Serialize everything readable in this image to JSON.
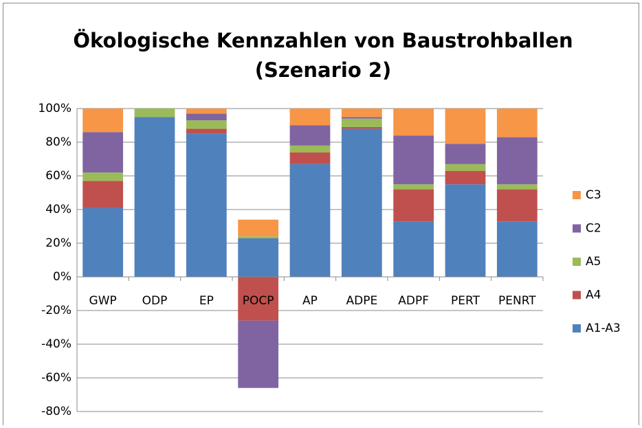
{
  "chart_data": {
    "type": "bar",
    "stacked": true,
    "title": [
      "Ökologische Kennzahlen von Baustrohballen",
      "(Szenario 2)"
    ],
    "categories": [
      "GWP",
      "ODP",
      "EP",
      "POCP",
      "AP",
      "ADPE",
      "ADPF",
      "PERT",
      "PENRT"
    ],
    "series": [
      {
        "name": "A1-A3",
        "color": "#4f81bd",
        "values": [
          41,
          95,
          85,
          23,
          67,
          88,
          33,
          55,
          33
        ]
      },
      {
        "name": "A4",
        "color": "#c0504d",
        "values": [
          16,
          0,
          3,
          -26,
          7,
          1,
          19,
          8,
          19
        ]
      },
      {
        "name": "A5",
        "color": "#9bbb59",
        "values": [
          5,
          5,
          5,
          1,
          4,
          5,
          3,
          4,
          3
        ]
      },
      {
        "name": "C2",
        "color": "#8064a2",
        "values": [
          24,
          0,
          4,
          -40,
          12,
          1,
          29,
          12,
          28
        ]
      },
      {
        "name": "C3",
        "color": "#f79646",
        "values": [
          14,
          0,
          3,
          10,
          10,
          5,
          16,
          21,
          17
        ]
      }
    ],
    "ylim": [
      -80,
      100
    ],
    "yticks": [
      {
        "value": -80,
        "label": "-80%"
      },
      {
        "value": -60,
        "label": "-60%"
      },
      {
        "value": -40,
        "label": "-40%"
      },
      {
        "value": -20,
        "label": "-20%"
      },
      {
        "value": 0,
        "label": "0%"
      },
      {
        "value": 20,
        "label": "20%"
      },
      {
        "value": 40,
        "label": "40%"
      },
      {
        "value": 60,
        "label": "60%"
      },
      {
        "value": 80,
        "label": "80%"
      },
      {
        "value": 100,
        "label": "100%"
      }
    ],
    "grid": true,
    "legend": "right"
  }
}
